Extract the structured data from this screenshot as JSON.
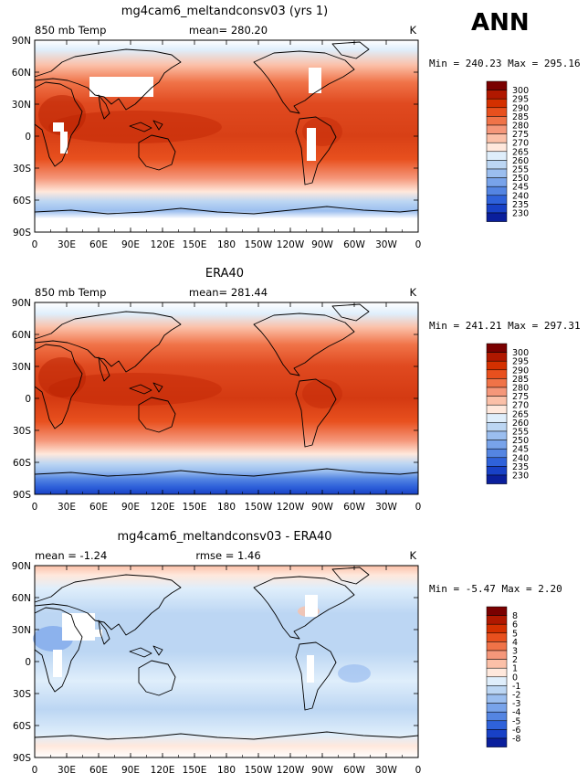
{
  "season_label": "ANN",
  "lon_ticks": [
    "0",
    "30E",
    "60E",
    "90E",
    "120E",
    "150E",
    "180",
    "150W",
    "120W",
    "90W",
    "60W",
    "30W",
    "0"
  ],
  "lat_ticks": [
    "90N",
    "60N",
    "30N",
    "0",
    "30S",
    "60S",
    "90S"
  ],
  "panels": [
    {
      "title": "mg4cam6_meltandconsv03 (yrs 1)",
      "left_label": "850 mb Temp",
      "center_label": "mean= 280.20",
      "right_label": "K",
      "minmax": "Min = 240.23 Max = 295.16",
      "colorbar": {
        "levels": [
          "300",
          "295",
          "290",
          "285",
          "280",
          "275",
          "270",
          "265",
          "260",
          "255",
          "250",
          "245",
          "240",
          "235",
          "230"
        ],
        "colors": [
          "#7a0000",
          "#b01800",
          "#d43000",
          "#e8501e",
          "#f07348",
          "#f5977a",
          "#fbc0a8",
          "#ffe8dc",
          "#dfeefb",
          "#bcd6f3",
          "#9bbeef",
          "#78a3ea",
          "#5485e2",
          "#2f62da",
          "#1841c6",
          "#0a1f9c"
        ]
      }
    },
    {
      "title": "ERA40",
      "left_label": "850 mb Temp",
      "center_label": "mean= 281.44",
      "right_label": "K",
      "minmax": "Min = 241.21 Max = 297.31",
      "colorbar": {
        "levels": [
          "300",
          "295",
          "290",
          "285",
          "280",
          "275",
          "270",
          "265",
          "260",
          "255",
          "250",
          "245",
          "240",
          "235",
          "230"
        ],
        "colors": [
          "#7a0000",
          "#b01800",
          "#d43000",
          "#e8501e",
          "#f07348",
          "#f5977a",
          "#fbc0a8",
          "#ffe8dc",
          "#dfeefb",
          "#bcd6f3",
          "#9bbeef",
          "#78a3ea",
          "#5485e2",
          "#2f62da",
          "#1841c6",
          "#0a1f9c"
        ]
      }
    },
    {
      "title": "mg4cam6_meltandconsv03 - ERA40",
      "left_label": "mean = -1.24",
      "center_label": "rmse = 1.46",
      "right_label": "K",
      "minmax": "Min = -5.47 Max = 2.20",
      "colorbar": {
        "levels": [
          "8",
          "6",
          "5",
          "4",
          "3",
          "2",
          "1",
          "0",
          "-1",
          "-2",
          "-3",
          "-4",
          "-5",
          "-6",
          "-8"
        ],
        "colors": [
          "#7a0000",
          "#b01800",
          "#d43000",
          "#e8501e",
          "#f07348",
          "#f5977a",
          "#fbc0a8",
          "#ffe8dc",
          "#dfeefb",
          "#bcd6f3",
          "#9bbeef",
          "#78a3ea",
          "#5485e2",
          "#2f62da",
          "#1841c6",
          "#0a1f9c"
        ]
      }
    }
  ]
}
